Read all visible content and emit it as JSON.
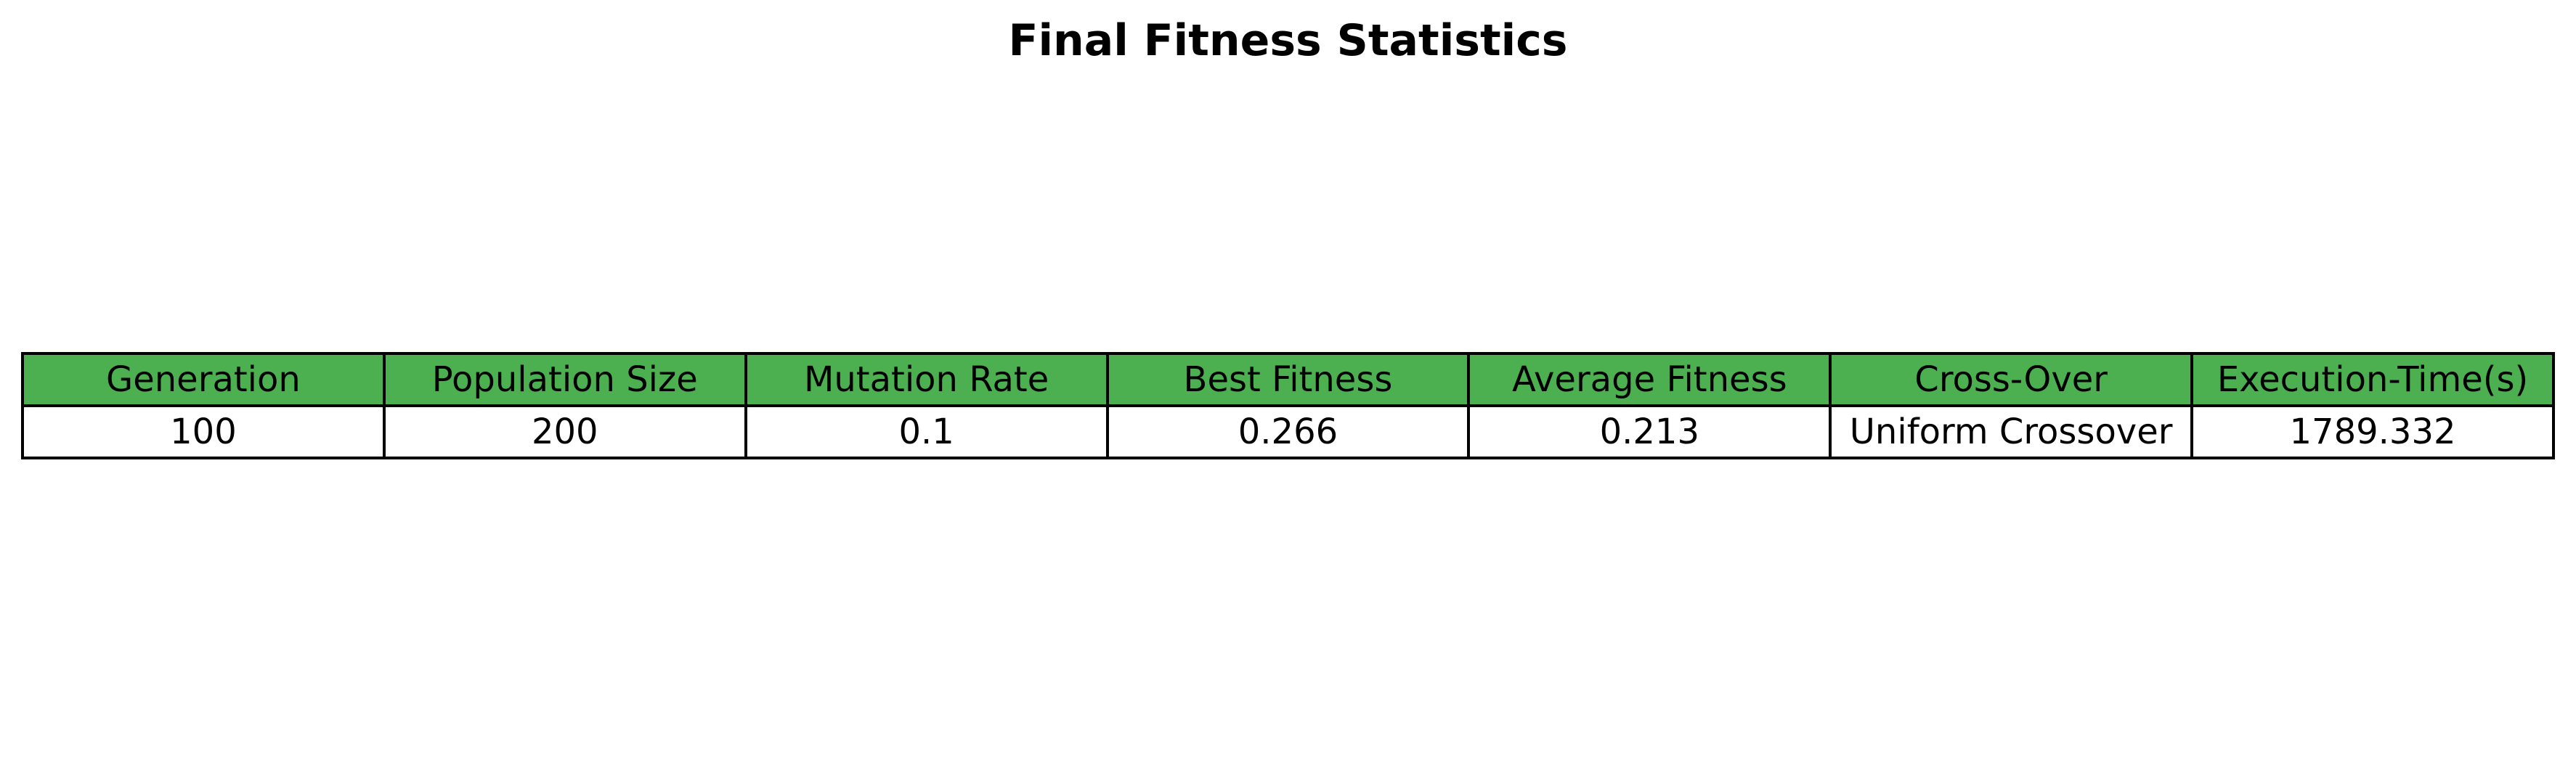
{
  "chart_data": {
    "type": "table",
    "title": "Final Fitness Statistics",
    "header_color": "#4caf50",
    "columns": [
      "Generation",
      "Population Size",
      "Mutation Rate",
      "Best Fitness",
      "Average Fitness",
      "Cross-Over",
      "Execution-Time(s)"
    ],
    "rows": [
      [
        "100",
        "200",
        "0.1",
        "0.266",
        "0.213",
        "Uniform Crossover",
        "1789.332"
      ]
    ]
  }
}
